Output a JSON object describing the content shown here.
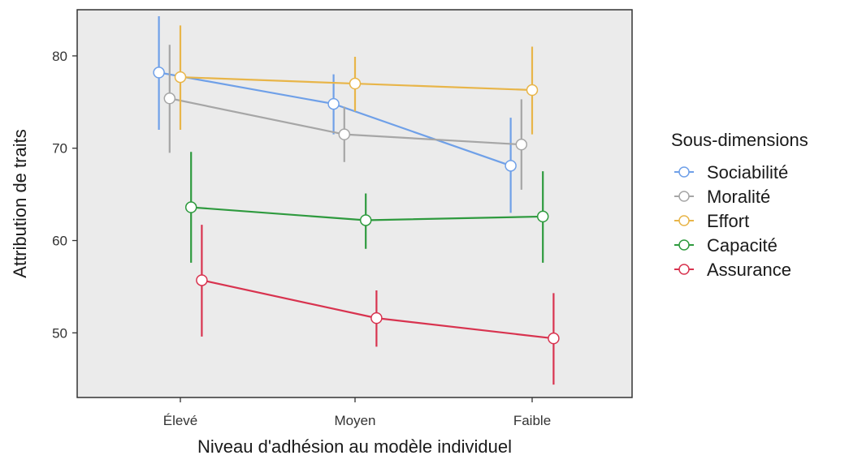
{
  "chart_data": {
    "type": "line",
    "xlabel": "Niveau d'adhésion au modèle individuel",
    "ylabel": "Attribution de traits",
    "categories": [
      "Élevé",
      "Moyen",
      "Faible"
    ],
    "ylim": [
      43,
      85
    ],
    "yticks": [
      50,
      60,
      70,
      80
    ],
    "grid": false,
    "error_bars": true,
    "legend": {
      "title": "Sous-dimensions",
      "placement": "right"
    },
    "background": "#ebebeb",
    "series": [
      {
        "name": "Sociabilité",
        "color": "#6fa0e8",
        "values": [
          78.2,
          74.8,
          68.1
        ],
        "lower": [
          72.0,
          71.5,
          63.0
        ],
        "upper": [
          84.3,
          78.0,
          73.3
        ]
      },
      {
        "name": "Moralité",
        "color": "#a6a6a6",
        "values": [
          75.4,
          71.5,
          70.4
        ],
        "lower": [
          69.5,
          68.5,
          65.5
        ],
        "upper": [
          81.2,
          74.5,
          75.3
        ]
      },
      {
        "name": "Effort",
        "color": "#e8b549",
        "values": [
          77.7,
          77.0,
          76.3
        ],
        "lower": [
          72.0,
          74.0,
          71.5
        ],
        "upper": [
          83.3,
          79.9,
          81.0
        ]
      },
      {
        "name": "Capacité",
        "color": "#2e9a3e",
        "values": [
          63.6,
          62.2,
          62.6
        ],
        "lower": [
          57.6,
          59.1,
          57.6
        ],
        "upper": [
          69.6,
          65.1,
          67.5
        ]
      },
      {
        "name": "Assurance",
        "color": "#d8334f",
        "values": [
          55.7,
          51.6,
          49.4
        ],
        "lower": [
          49.6,
          48.5,
          44.4
        ],
        "upper": [
          61.7,
          54.6,
          54.3
        ]
      }
    ]
  }
}
